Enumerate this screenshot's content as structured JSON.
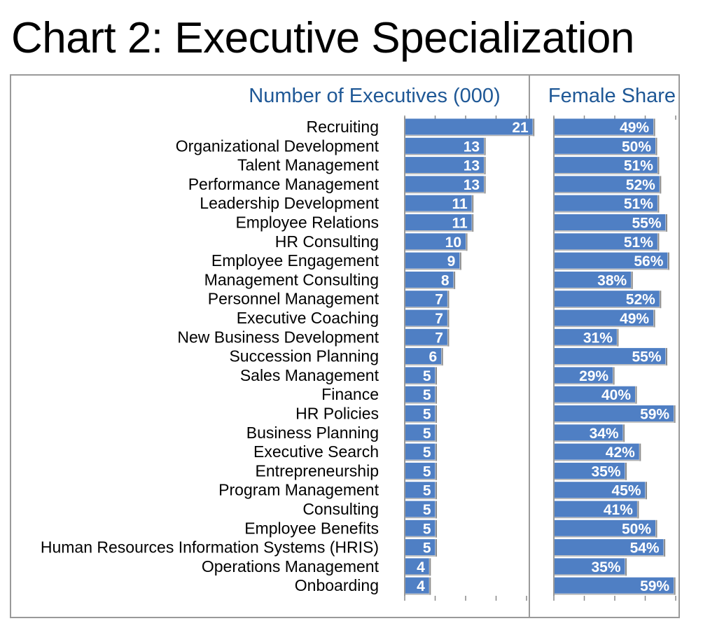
{
  "title": "Chart 2: Executive Specialization",
  "chart_data": [
    {
      "type": "bar",
      "orientation": "horizontal",
      "title": "Number of Executives (000)",
      "categories": [
        "Recruiting",
        "Organizational Development",
        "Talent Management",
        "Performance Management",
        "Leadership Development",
        "Employee Relations",
        "HR Consulting",
        "Employee Engagement",
        "Management Consulting",
        "Personnel Management",
        "Executive Coaching",
        "New Business Development",
        "Succession Planning",
        "Sales Management",
        "Finance",
        "HR Policies",
        "Business Planning",
        "Executive Search",
        "Entrepreneurship",
        "Program Management",
        "Consulting",
        "Employee Benefits",
        "Human Resources Information Systems (HRIS)",
        "Operations Management",
        "Onboarding"
      ],
      "values": [
        21,
        13,
        13,
        13,
        11,
        11,
        10,
        9,
        8,
        7,
        7,
        7,
        6,
        5,
        5,
        5,
        5,
        5,
        5,
        5,
        5,
        5,
        5,
        4,
        4
      ],
      "value_labels": [
        "21",
        "13",
        "13",
        "13",
        "11",
        "11",
        "10",
        "9",
        "8",
        "7",
        "7",
        "7",
        "6",
        "5",
        "5",
        "5",
        "5",
        "5",
        "5",
        "5",
        "5",
        "5",
        "5",
        "4",
        "4"
      ],
      "xlim": [
        0,
        20
      ],
      "bar_color": "#4f7fc4"
    },
    {
      "type": "bar",
      "orientation": "horizontal",
      "title": "Female Share",
      "categories": [
        "Recruiting",
        "Organizational Development",
        "Talent Management",
        "Performance Management",
        "Leadership Development",
        "Employee Relations",
        "HR Consulting",
        "Employee Engagement",
        "Management Consulting",
        "Personnel Management",
        "Executive Coaching",
        "New Business Development",
        "Succession Planning",
        "Sales Management",
        "Finance",
        "HR Policies",
        "Business Planning",
        "Executive Search",
        "Entrepreneurship",
        "Program Management",
        "Consulting",
        "Employee Benefits",
        "Human Resources Information Systems (HRIS)",
        "Operations Management",
        "Onboarding"
      ],
      "values": [
        49,
        50,
        51,
        52,
        51,
        55,
        51,
        56,
        38,
        52,
        49,
        31,
        55,
        29,
        40,
        59,
        34,
        42,
        35,
        45,
        41,
        50,
        54,
        35,
        59
      ],
      "value_labels": [
        "49%",
        "50%",
        "51%",
        "52%",
        "51%",
        "55%",
        "51%",
        "56%",
        "38%",
        "52%",
        "49%",
        "31%",
        "55%",
        "29%",
        "40%",
        "59%",
        "34%",
        "42%",
        "35%",
        "45%",
        "41%",
        "50%",
        "54%",
        "35%",
        "59%"
      ],
      "xlim": [
        0,
        60
      ],
      "bar_color": "#4f7fc4"
    }
  ]
}
